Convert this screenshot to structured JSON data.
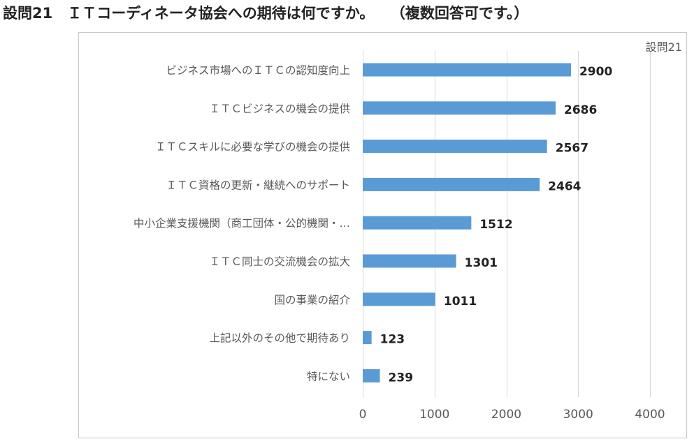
{
  "header": {
    "title": "設問21　ＩＴコーディネータ協会への期待は何ですか。",
    "subtitle": "（複数回答可です。）"
  },
  "chart_data": {
    "type": "bar",
    "orientation": "horizontal",
    "series_label": "設問21",
    "categories": [
      "ビジネス市場へのＩＴＣの認知度向上",
      "ＩＴＣビジネスの機会の提供",
      "ＩＴＣスキルに必要な学びの機会の提供",
      "ＩＴＣ資格の更新・継続へのサポート",
      "中小企業支援機関（商工団体・公的機関・…",
      "ＩＴＣ同士の交流機会の拡大",
      "国の事業の紹介",
      "上記以外のその他で期待あり",
      "特にない"
    ],
    "values": [
      2900,
      2686,
      2567,
      2464,
      1512,
      1301,
      1011,
      123,
      239
    ],
    "xlim": [
      0,
      4000
    ],
    "xticks": [
      0,
      1000,
      2000,
      3000,
      4000
    ],
    "grid": true,
    "data_labels": true,
    "colors": {
      "bar": "#5b9bd5",
      "grid": "#d9d9d9"
    }
  }
}
